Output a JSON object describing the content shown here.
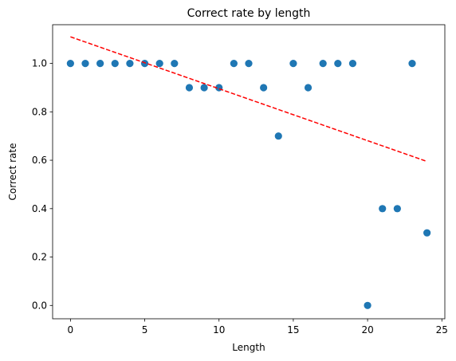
{
  "chart_data": {
    "type": "scatter",
    "title": "Correct rate by length",
    "xlabel": "Length",
    "ylabel": "Correct rate",
    "xlim": [
      -1.2,
      25.2
    ],
    "ylim": [
      -0.055,
      1.16
    ],
    "xticks": [
      0,
      5,
      10,
      15,
      20,
      25
    ],
    "xtick_labels": [
      "0",
      "5",
      "10",
      "15",
      "20",
      "25"
    ],
    "yticks": [
      0.0,
      0.2,
      0.4,
      0.6,
      0.8,
      1.0
    ],
    "ytick_labels": [
      "0.0",
      "0.2",
      "0.4",
      "0.6",
      "0.8",
      "1.0"
    ],
    "grid": false,
    "series": [
      {
        "type": "scatter",
        "color": "#1f77b4",
        "points": [
          {
            "x": 0,
            "y": 1.0
          },
          {
            "x": 1,
            "y": 1.0
          },
          {
            "x": 2,
            "y": 1.0
          },
          {
            "x": 3,
            "y": 1.0
          },
          {
            "x": 4,
            "y": 1.0
          },
          {
            "x": 5,
            "y": 1.0
          },
          {
            "x": 6,
            "y": 1.0
          },
          {
            "x": 7,
            "y": 1.0
          },
          {
            "x": 8,
            "y": 0.9
          },
          {
            "x": 9,
            "y": 0.9
          },
          {
            "x": 10,
            "y": 0.9
          },
          {
            "x": 11,
            "y": 1.0
          },
          {
            "x": 12,
            "y": 1.0
          },
          {
            "x": 13,
            "y": 0.9
          },
          {
            "x": 14,
            "y": 0.7
          },
          {
            "x": 15,
            "y": 1.0
          },
          {
            "x": 16,
            "y": 0.9
          },
          {
            "x": 17,
            "y": 1.0
          },
          {
            "x": 18,
            "y": 1.0
          },
          {
            "x": 19,
            "y": 1.0
          },
          {
            "x": 20,
            "y": 0.0
          },
          {
            "x": 21,
            "y": 0.4
          },
          {
            "x": 22,
            "y": 0.4
          },
          {
            "x": 23,
            "y": 1.0
          },
          {
            "x": 24,
            "y": 0.3
          }
        ]
      },
      {
        "type": "trendline",
        "color": "#ff0000",
        "style": "dashed",
        "points": [
          {
            "x": 0,
            "y": 1.11
          },
          {
            "x": 24,
            "y": 0.595
          }
        ]
      }
    ]
  }
}
